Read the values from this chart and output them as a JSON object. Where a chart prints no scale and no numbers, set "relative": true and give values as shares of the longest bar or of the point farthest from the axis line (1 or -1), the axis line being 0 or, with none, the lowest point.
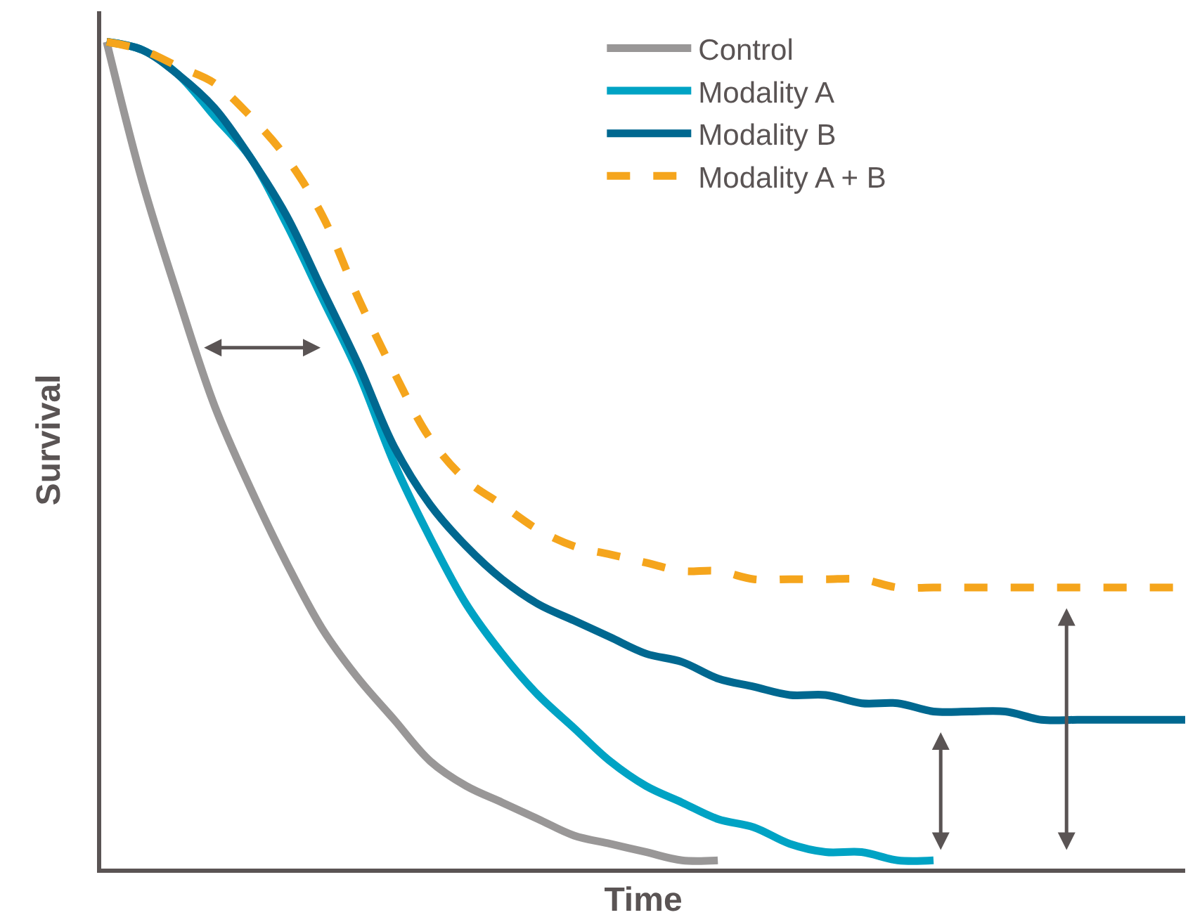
{
  "chart_data": {
    "type": "line",
    "xlabel": "Time",
    "ylabel": "Survival",
    "relative": true,
    "legend": "top right",
    "marker": "none",
    "categories": [
      null,
      null,
      null,
      null,
      null,
      null,
      null,
      null,
      null,
      null,
      null,
      null,
      null,
      null,
      null,
      null,
      null,
      null,
      null,
      null,
      null,
      null,
      null,
      null,
      null,
      null,
      null,
      null,
      null,
      null,
      null
    ],
    "series": [
      {
        "name": "Control",
        "color": "#999797",
        "line_style": "solid",
        "values": [
          1,
          0.83,
          0.69,
          0.56,
          0.46,
          0.37,
          0.29,
          0.23,
          0.18,
          0.13,
          0.1,
          0.08,
          0.06,
          0.04,
          0.03,
          0.02,
          0.01,
          0.01,
          null,
          null,
          null,
          null,
          null,
          null,
          null,
          null,
          null,
          null,
          null,
          null,
          null
        ]
      },
      {
        "name": "Modality A",
        "color": "#00a3c4",
        "line_style": "solid",
        "values": [
          1,
          0.99,
          0.96,
          0.91,
          0.86,
          0.78,
          0.69,
          0.6,
          0.49,
          0.4,
          0.32,
          0.26,
          0.21,
          0.17,
          0.13,
          0.1,
          0.08,
          0.06,
          0.05,
          0.03,
          0.02,
          0.02,
          0.01,
          0.01,
          null,
          null,
          null,
          null,
          null,
          null,
          null
        ]
      },
      {
        "name": "Modality B",
        "color": "#006890",
        "line_style": "solid",
        "values": [
          1,
          0.99,
          0.96,
          0.92,
          0.86,
          0.79,
          0.7,
          0.61,
          0.51,
          0.44,
          0.39,
          0.35,
          0.32,
          0.3,
          0.28,
          0.26,
          0.25,
          0.23,
          0.22,
          0.21,
          0.21,
          0.2,
          0.2,
          0.19,
          0.19,
          0.19,
          0.18,
          0.18,
          0.18,
          0.18,
          0.18
        ]
      },
      {
        "name": "Modality A + B",
        "color": "#f5a51c",
        "line_style": "dashed",
        "values": [
          1,
          0.99,
          0.97,
          0.95,
          0.91,
          0.86,
          0.79,
          0.69,
          0.6,
          0.52,
          0.47,
          0.44,
          0.41,
          0.39,
          0.38,
          0.37,
          0.36,
          0.36,
          0.35,
          0.35,
          0.35,
          0.35,
          0.34,
          0.34,
          0.34,
          0.34,
          0.34,
          0.34,
          0.34,
          0.34,
          0.34
        ]
      }
    ]
  }
}
